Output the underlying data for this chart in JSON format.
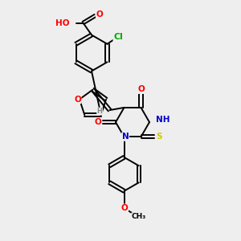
{
  "bg_color": "#eeeeee",
  "atom_colors": {
    "O": "#ff0000",
    "N": "#0000cc",
    "S": "#cccc00",
    "Cl": "#00aa00",
    "H": "#888888",
    "C": "#000000"
  },
  "layout": {
    "xlim": [
      0,
      10
    ],
    "ylim": [
      0,
      10
    ],
    "figsize": [
      3.0,
      3.0
    ],
    "dpi": 100
  },
  "font_size": 7.5
}
